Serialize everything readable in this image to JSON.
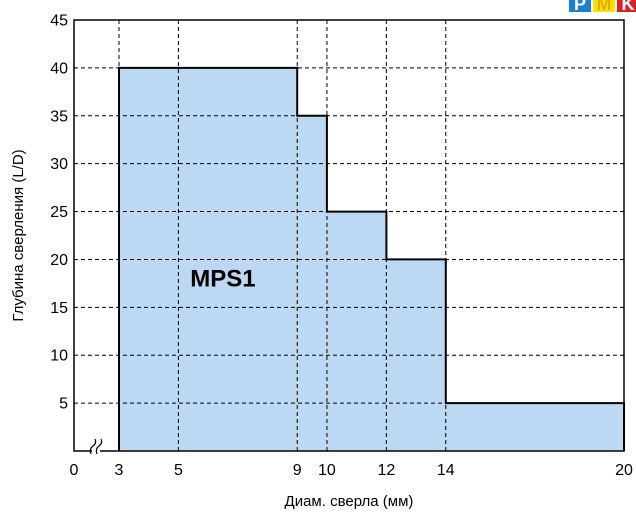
{
  "chart_data": {
    "type": "area",
    "xlabel": "Диам. сверла (мм)",
    "ylabel": "Глубина сверления (L/D)",
    "xlim": [
      0,
      20
    ],
    "ylim": [
      0,
      45
    ],
    "x_axis_break": true,
    "x_ticks": [
      0,
      3,
      5,
      9,
      10,
      12,
      14,
      20
    ],
    "y_ticks": [
      5,
      10,
      15,
      20,
      25,
      30,
      35,
      40,
      45
    ],
    "grid": true,
    "grid_style": "dashed",
    "fill_color": "#bcd8f3",
    "line_color": "#000000",
    "region_label": "MPS1",
    "step_boundary": [
      {
        "x": 3,
        "y": 0
      },
      {
        "x": 3,
        "y": 40
      },
      {
        "x": 9,
        "y": 40
      },
      {
        "x": 9,
        "y": 35
      },
      {
        "x": 10,
        "y": 35
      },
      {
        "x": 10,
        "y": 25
      },
      {
        "x": 12,
        "y": 25
      },
      {
        "x": 12,
        "y": 20
      },
      {
        "x": 14,
        "y": 20
      },
      {
        "x": 14,
        "y": 5
      },
      {
        "x": 20,
        "y": 5
      },
      {
        "x": 20,
        "y": 0
      }
    ]
  },
  "badges": [
    {
      "letter": "P",
      "bg": "#1c7fd0",
      "fg": "#ffffff"
    },
    {
      "letter": "M",
      "bg": "#f2e600",
      "fg": "#f2a600"
    },
    {
      "letter": "K",
      "bg": "#e01e24",
      "fg": "#ffffff"
    }
  ]
}
